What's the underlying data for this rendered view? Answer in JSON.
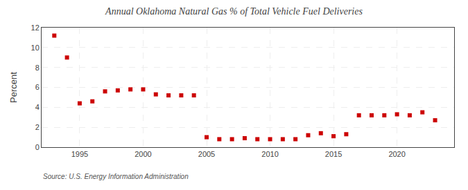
{
  "chart_data": {
    "type": "scatter",
    "title": "Annual Oklahoma Natural Gas % of Total Vehicle Fuel Deliveries",
    "ylabel": "Percent",
    "annotations": [
      "Source: U.S. Energy Information Administration"
    ],
    "x": [
      1993,
      1994,
      1995,
      1996,
      1997,
      1998,
      1999,
      2000,
      2001,
      2002,
      2003,
      2004,
      2005,
      2006,
      2007,
      2008,
      2009,
      2010,
      2011,
      2012,
      2013,
      2014,
      2015,
      2016,
      2017,
      2018,
      2019,
      2020,
      2021,
      2022,
      2023
    ],
    "values": [
      11.2,
      9.0,
      4.4,
      4.6,
      5.6,
      5.7,
      5.8,
      5.8,
      5.3,
      5.2,
      5.2,
      5.2,
      1.0,
      0.8,
      0.8,
      0.9,
      0.8,
      0.8,
      0.8,
      0.8,
      1.2,
      1.4,
      1.1,
      1.3,
      3.2,
      3.2,
      3.2,
      3.3,
      3.2,
      3.5,
      2.7
    ],
    "color": "#cc0000",
    "marker": "square",
    "xlim": [
      1992,
      2024.5
    ],
    "xticks": [
      1995,
      2000,
      2005,
      2010,
      2015,
      2020
    ],
    "ylim": [
      0,
      12
    ],
    "yticks": [
      0,
      2,
      4,
      6,
      8,
      10,
      12
    ],
    "grid": true
  }
}
